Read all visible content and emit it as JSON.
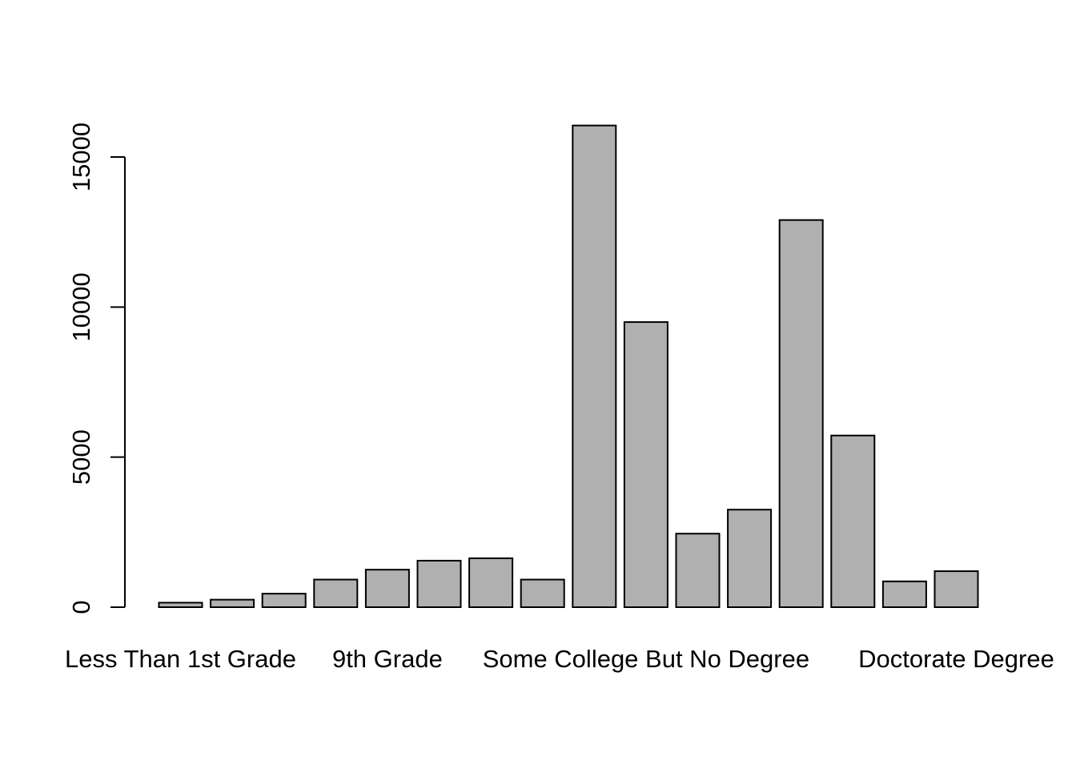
{
  "chart_data": {
    "type": "bar",
    "title": "",
    "xlabel": "",
    "ylabel": "",
    "categories": [
      "Less Than 1st Grade",
      "",
      "",
      "",
      "9th Grade",
      "",
      "",
      "",
      "",
      "Some College But No Degree",
      "",
      "",
      "",
      "",
      "",
      "Doctorate Degree"
    ],
    "values": [
      150,
      250,
      450,
      920,
      1250,
      1550,
      1630,
      920,
      16050,
      9500,
      2450,
      3250,
      12900,
      5720,
      860,
      1200
    ],
    "yticks": [
      0,
      5000,
      10000,
      15000
    ],
    "ytick_labels": [
      "0",
      "5000",
      "10000",
      "15000"
    ],
    "ylim": [
      0,
      16050
    ],
    "bar_color": "#b0b0b0",
    "bar_edge_color": "#000000",
    "grid": false,
    "legend": "none"
  }
}
